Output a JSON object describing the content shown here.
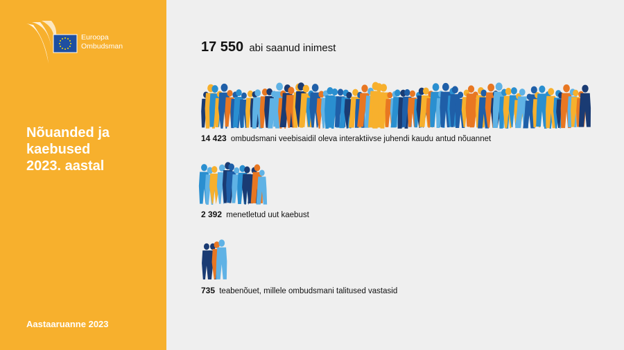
{
  "logo": {
    "line1": "Euroopa",
    "line2": "Ombudsman"
  },
  "sidebar": {
    "title_lines": [
      "Nõuanded ja",
      "kaebused",
      "2023. aastal"
    ],
    "footer": "Aastaaruanne 2023"
  },
  "total": {
    "number": "17 550",
    "label": "abi saanud inimest"
  },
  "items": [
    {
      "number": "14 423",
      "label": "ombudsmani veebisaidil oleva interaktiivse juhendi kaudu antud nõuannet"
    },
    {
      "number": "2 392",
      "label": "menetletud uut kaebust"
    },
    {
      "number": "735",
      "label": "teabenõuet, millele ombudsmani talitused vastasid"
    }
  ]
}
